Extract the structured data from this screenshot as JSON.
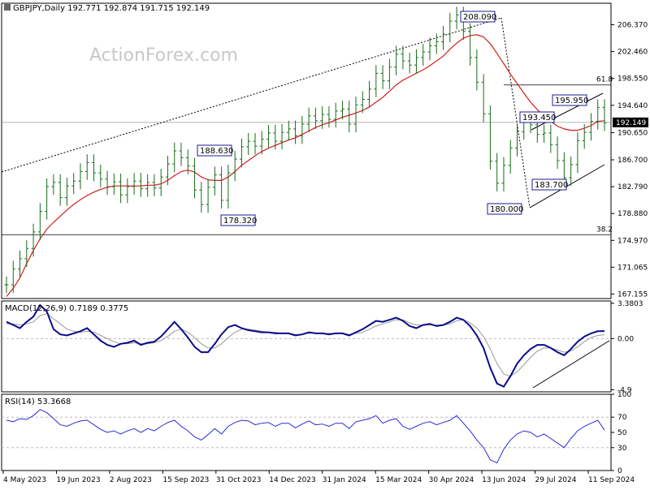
{
  "header": {
    "symbol_line": "GBPJPY,Daily  192.771 192.874 191.715 192.149"
  },
  "watermark": "ActionForex.com",
  "colors": {
    "price": "#1a6b1a",
    "sma": "#d21e1e",
    "macd": "#0b0b8a",
    "signal": "#9a9a9a",
    "rsi": "#2a2ad6",
    "grid": "#bcbcbc",
    "trendline": "#000000"
  },
  "chart_data": [
    {
      "type": "line",
      "panel": "price",
      "x_ticks": [
        "4 May 2023",
        "19 Jun 2023",
        "2 Aug 2023",
        "15 Sep 2023",
        "31 Oct 2023",
        "14 Dec 2023",
        "31 Jan 2024",
        "15 Mar 2024",
        "30 Apr 2024",
        "13 Jun 2024",
        "29 Jul 2024",
        "11 Sep 2024"
      ],
      "y_ticks": [
        "206.370",
        "202.460",
        "198.550",
        "194.640",
        "190.650",
        "186.700",
        "182.790",
        "178.880",
        "174.970",
        "171.065",
        "167.155"
      ],
      "ylim": [
        166.5,
        209.5
      ],
      "current_price": "192.149",
      "series": [
        {
          "values": [
            168.5,
            170.8,
            172.3,
            173.8,
            176.2,
            179.2,
            182.8,
            183.4,
            181.2,
            182.9,
            183.6,
            185.0,
            186.3,
            184.8,
            183.9,
            182.8,
            183.5,
            181.6,
            182.8,
            183.6,
            182.5,
            183.4,
            182.6,
            184.2,
            186.1,
            188.0,
            187.0,
            185.8,
            182.3,
            180.2,
            182.7,
            184.5,
            180.8,
            184.8,
            186.8,
            188.6,
            189.4,
            188.7,
            189.7,
            190.6,
            189.4,
            190.7,
            191.2,
            190.2,
            191.9,
            193.1,
            192.4,
            193.3,
            192.6,
            193.8,
            194.1,
            191.9,
            194.7,
            195.5,
            197.0,
            199.3,
            198.2,
            200.2,
            202.1,
            201.1,
            200.5,
            201.6,
            202.4,
            203.3,
            203.9,
            205.0,
            206.9,
            207.8,
            205.4,
            201.6,
            198.0,
            193.4,
            186.5,
            183.3,
            185.9,
            188.4,
            190.8,
            192.2,
            191.8,
            190.4,
            190.6,
            188.9,
            186.6,
            184.1,
            186.0,
            189.5,
            190.7,
            192.3,
            194.3,
            192.1
          ]
        },
        {
          "name": "",
          "values": [
            166.8,
            168.0,
            169.5,
            171.6,
            173.5,
            175.2,
            176.6,
            177.6,
            178.5,
            179.4,
            180.2,
            180.9,
            181.5,
            182.0,
            182.4,
            182.7,
            182.9,
            182.9,
            182.9,
            182.9,
            182.9,
            183.0,
            183.0,
            183.2,
            183.7,
            184.4,
            185.0,
            185.2,
            184.9,
            184.2,
            183.8,
            183.7,
            183.7,
            184.2,
            185.0,
            185.9,
            186.6,
            187.3,
            187.9,
            188.4,
            188.8,
            189.2,
            189.6,
            189.9,
            190.4,
            190.9,
            191.4,
            191.8,
            192.1,
            192.5,
            192.9,
            193.2,
            193.5,
            193.9,
            194.4,
            195.1,
            195.8,
            196.7,
            197.6,
            198.3,
            198.8,
            199.3,
            199.8,
            200.4,
            201.1,
            201.8,
            202.8,
            203.7,
            204.4,
            204.8,
            204.9,
            204.6,
            203.6,
            202.2,
            200.7,
            199.2,
            197.8,
            196.4,
            195.1,
            194.0,
            193.1,
            192.3,
            191.6,
            191.2,
            191.0,
            191.0,
            191.3,
            191.7,
            192.3,
            192.4
          ]
        }
      ],
      "annotations": [
        "208.090",
        "188.630",
        "178.320",
        "195.950",
        "193.450",
        "183.700",
        "180.000"
      ],
      "fib_labels": [
        "61.8",
        "38.2"
      ]
    },
    {
      "type": "line",
      "panel": "macd",
      "title": "MACD(12,26,9) 0.7189 0.3775",
      "y_ticks": [
        "3.3803",
        "0.00",
        "-4.9"
      ],
      "ylim": [
        -5.1,
        3.6
      ],
      "series": [
        {
          "values": [
            1.6,
            1.3,
            1.0,
            1.6,
            2.1,
            3.2,
            2.6,
            0.9,
            0.4,
            0.3,
            0.5,
            0.7,
            1.0,
            0.4,
            -0.2,
            -0.6,
            -0.8,
            -0.5,
            -0.4,
            -0.2,
            -0.6,
            -0.4,
            -0.3,
            0.2,
            0.9,
            1.6,
            0.9,
            0.1,
            -0.8,
            -1.3,
            -1.3,
            -0.5,
            0.4,
            1.1,
            1.3,
            1.0,
            0.8,
            0.7,
            0.6,
            0.6,
            0.5,
            0.5,
            0.5,
            0.3,
            0.4,
            0.6,
            0.5,
            0.5,
            0.4,
            0.5,
            0.5,
            0.3,
            0.6,
            0.9,
            1.3,
            1.7,
            1.6,
            1.8,
            2.0,
            1.7,
            1.2,
            1.0,
            1.3,
            1.4,
            1.2,
            1.3,
            1.6,
            2.0,
            1.8,
            1.2,
            0.3,
            -0.9,
            -2.8,
            -4.3,
            -4.6,
            -3.6,
            -2.4,
            -1.6,
            -1.0,
            -0.6,
            -0.6,
            -0.9,
            -1.3,
            -1.6,
            -1.0,
            -0.3,
            0.2,
            0.5,
            0.7,
            0.72
          ]
        },
        {
          "values": [
            1.4,
            1.4,
            1.3,
            1.4,
            1.6,
            2.2,
            2.4,
            1.9,
            1.4,
            0.9,
            0.7,
            0.6,
            0.7,
            0.6,
            0.3,
            0.0,
            -0.3,
            -0.5,
            -0.5,
            -0.4,
            -0.5,
            -0.5,
            -0.4,
            -0.2,
            0.2,
            0.7,
            0.9,
            0.6,
            0.1,
            -0.5,
            -0.9,
            -0.9,
            -0.5,
            0.1,
            0.6,
            0.9,
            0.9,
            0.8,
            0.7,
            0.6,
            0.6,
            0.5,
            0.5,
            0.4,
            0.4,
            0.5,
            0.5,
            0.5,
            0.5,
            0.5,
            0.5,
            0.4,
            0.5,
            0.6,
            0.9,
            1.2,
            1.4,
            1.6,
            1.8,
            1.8,
            1.5,
            1.3,
            1.3,
            1.3,
            1.3,
            1.3,
            1.4,
            1.7,
            1.8,
            1.5,
            1.0,
            0.2,
            -1.0,
            -2.4,
            -3.4,
            -3.6,
            -3.2,
            -2.5,
            -1.8,
            -1.2,
            -0.9,
            -0.9,
            -1.1,
            -1.3,
            -1.2,
            -0.8,
            -0.3,
            0.1,
            0.3,
            0.38
          ]
        }
      ]
    },
    {
      "type": "line",
      "panel": "rsi",
      "title": "RSI(14) 53.3668",
      "y_ticks": [
        "100",
        "70",
        "50",
        "30",
        "0"
      ],
      "ylim": [
        0,
        100
      ],
      "series": [
        {
          "values": [
            66,
            64,
            68,
            67,
            72,
            80,
            76,
            68,
            60,
            58,
            62,
            65,
            66,
            60,
            54,
            50,
            52,
            48,
            52,
            55,
            50,
            55,
            52,
            58,
            63,
            66,
            58,
            52,
            44,
            40,
            47,
            55,
            48,
            58,
            63,
            66,
            65,
            60,
            62,
            63,
            58,
            62,
            62,
            56,
            61,
            65,
            60,
            61,
            58,
            62,
            62,
            55,
            64,
            66,
            68,
            72,
            62,
            66,
            68,
            58,
            54,
            58,
            62,
            64,
            60,
            63,
            66,
            72,
            62,
            52,
            40,
            30,
            14,
            10,
            28,
            40,
            48,
            52,
            50,
            44,
            48,
            42,
            36,
            30,
            42,
            52,
            58,
            62,
            66,
            53
          ]
        }
      ]
    }
  ]
}
